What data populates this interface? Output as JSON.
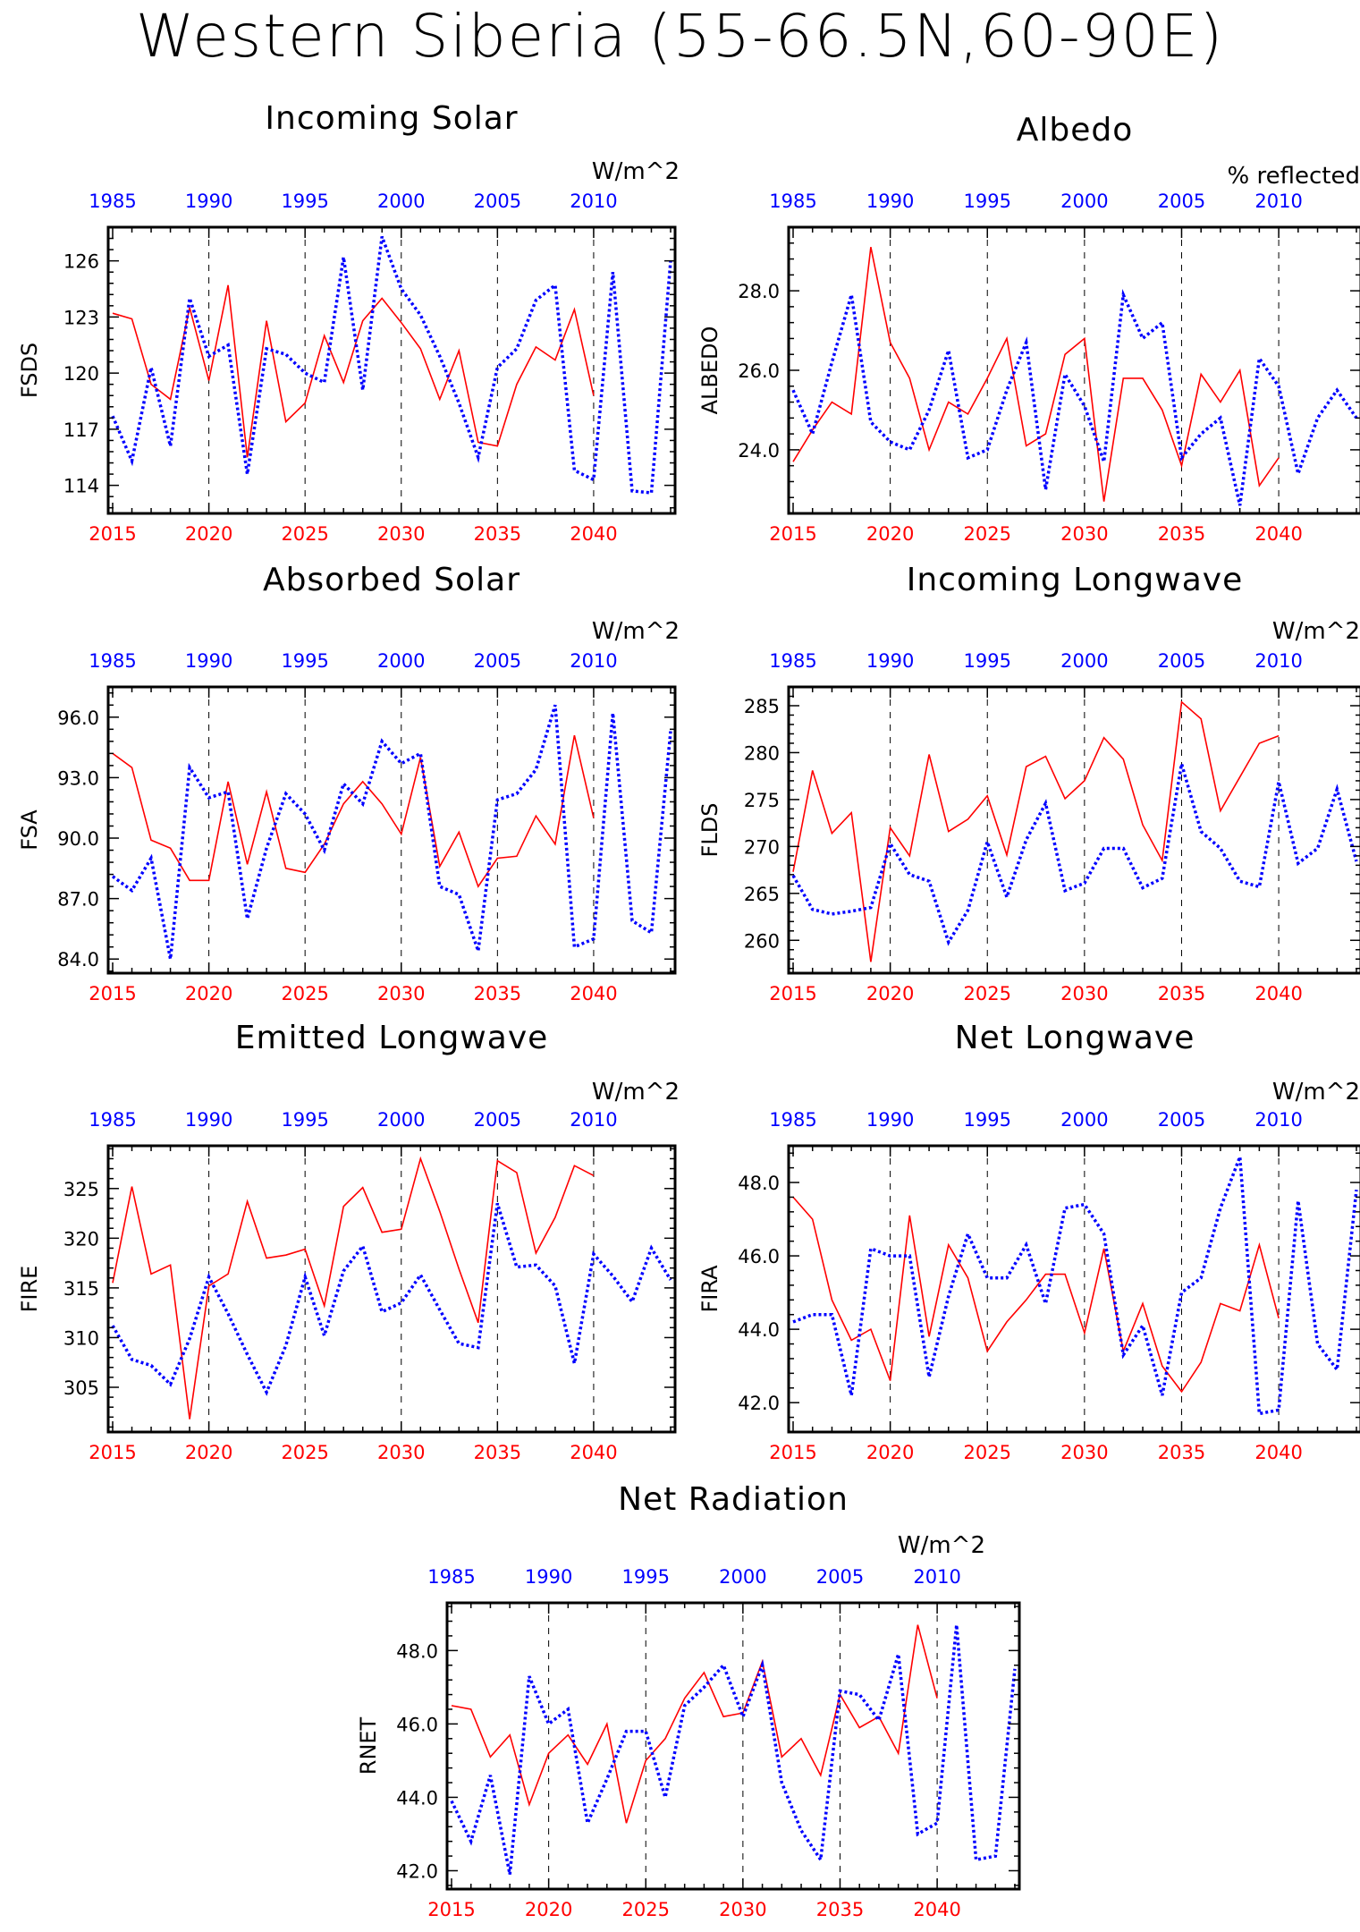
{
  "figure": {
    "title": "Western Siberia (55-66.5N,60-90E)"
  },
  "styles": {
    "future_color": "#ff0000",
    "historical_color": "#0000ff",
    "future_line": "solid",
    "historical_line": "dotted"
  },
  "chart_data": [
    {
      "id": "fsds",
      "type": "line",
      "title": "Incoming Solar",
      "units": "W/m^2",
      "ylabel": "FSDS",
      "ylim": [
        112.5,
        127.8
      ],
      "yticks": [
        114,
        117,
        120,
        123,
        126
      ],
      "ytick_labels": [
        "114",
        "117",
        "120",
        "123",
        "126"
      ],
      "x_bottom": {
        "lim": [
          2015,
          2044
        ],
        "ticks": [
          2015,
          2020,
          2025,
          2030,
          2035,
          2040
        ]
      },
      "x_top": {
        "lim": [
          1985,
          2014
        ],
        "ticks": [
          1985,
          1990,
          1995,
          2000,
          2005,
          2010
        ]
      },
      "series": [
        {
          "axis": "bottom",
          "x0": 2015,
          "values": [
            123.2,
            122.9,
            119.4,
            118.6,
            123.5,
            119.6,
            124.7,
            115.5,
            122.8,
            117.4,
            118.4,
            122.0,
            119.5,
            122.8,
            124.0,
            122.7,
            121.3,
            118.6,
            121.2,
            116.3,
            116.1,
            119.4,
            121.4,
            120.7,
            123.4,
            118.8
          ]
        },
        {
          "axis": "top",
          "x0": 1985,
          "values": [
            117.7,
            115.3,
            120.3,
            116.1,
            124.0,
            120.9,
            121.5,
            114.6,
            121.3,
            121.0,
            120.0,
            119.5,
            126.2,
            119.1,
            127.3,
            124.5,
            123.1,
            120.9,
            118.4,
            115.5,
            120.3,
            121.3,
            123.9,
            124.7,
            114.8,
            114.3,
            125.4,
            113.7,
            113.6,
            126.0
          ]
        }
      ]
    },
    {
      "id": "albedo",
      "type": "line",
      "title": "Albedo",
      "units": "% reflected",
      "ylabel": "ALBEDO",
      "ylim": [
        22.4,
        29.6
      ],
      "yticks": [
        24,
        26,
        28
      ],
      "ytick_labels": [
        "24.0",
        "26.0",
        "28.0"
      ],
      "x_bottom": {
        "lim": [
          2015,
          2044
        ],
        "ticks": [
          2015,
          2020,
          2025,
          2030,
          2035,
          2040
        ]
      },
      "x_top": {
        "lim": [
          1985,
          2014
        ],
        "ticks": [
          1985,
          1990,
          1995,
          2000,
          2005,
          2010
        ]
      },
      "series": [
        {
          "axis": "bottom",
          "x0": 2015,
          "values": [
            23.7,
            24.5,
            25.2,
            24.9,
            29.1,
            26.7,
            25.8,
            24.0,
            25.2,
            24.9,
            25.8,
            26.8,
            24.1,
            24.4,
            26.4,
            26.8,
            22.7,
            25.8,
            25.8,
            25.0,
            23.6,
            25.9,
            25.2,
            26.0,
            23.1,
            23.8
          ]
        },
        {
          "axis": "top",
          "x0": 1985,
          "values": [
            25.5,
            24.4,
            26.2,
            27.9,
            24.7,
            24.2,
            24.0,
            25.0,
            26.5,
            23.8,
            24.0,
            25.5,
            26.7,
            23.0,
            25.9,
            25.1,
            23.7,
            27.9,
            26.8,
            27.2,
            23.8,
            24.4,
            24.8,
            22.6,
            26.3,
            25.6,
            23.4,
            24.8,
            25.5,
            24.8
          ]
        }
      ]
    },
    {
      "id": "fsa",
      "type": "line",
      "title": "Absorbed Solar",
      "units": "W/m^2",
      "ylabel": "FSA",
      "ylim": [
        83.3,
        97.5
      ],
      "yticks": [
        84,
        87,
        90,
        93,
        96
      ],
      "ytick_labels": [
        "84.0",
        "87.0",
        "90.0",
        "93.0",
        "96.0"
      ],
      "x_bottom": {
        "lim": [
          2015,
          2044
        ],
        "ticks": [
          2015,
          2020,
          2025,
          2030,
          2035,
          2040
        ]
      },
      "x_top": {
        "lim": [
          1985,
          2014
        ],
        "ticks": [
          1985,
          1990,
          1995,
          2000,
          2005,
          2010
        ]
      },
      "series": [
        {
          "axis": "bottom",
          "x0": 2015,
          "values": [
            94.2,
            93.5,
            89.9,
            89.5,
            87.9,
            87.9,
            92.8,
            88.7,
            92.3,
            88.5,
            88.3,
            89.7,
            91.7,
            92.8,
            91.7,
            90.2,
            94.0,
            88.6,
            90.3,
            87.6,
            89.0,
            89.1,
            91.1,
            89.7,
            95.1,
            91.0
          ]
        },
        {
          "axis": "top",
          "x0": 1985,
          "values": [
            88.1,
            87.4,
            89.0,
            84.0,
            93.5,
            92.0,
            92.3,
            86.0,
            89.5,
            92.2,
            91.2,
            89.4,
            92.7,
            91.7,
            94.8,
            93.7,
            94.2,
            87.6,
            87.2,
            84.4,
            91.9,
            92.2,
            93.4,
            96.6,
            84.6,
            85.0,
            96.2,
            85.9,
            85.3,
            95.3
          ]
        }
      ]
    },
    {
      "id": "flds",
      "type": "line",
      "title": "Incoming Longwave",
      "units": "W/m^2",
      "ylabel": "FLDS",
      "ylim": [
        256.5,
        287.0
      ],
      "yticks": [
        260,
        265,
        270,
        275,
        280,
        285
      ],
      "ytick_labels": [
        "260",
        "265",
        "270",
        "275",
        "280",
        "285"
      ],
      "x_bottom": {
        "lim": [
          2015,
          2044
        ],
        "ticks": [
          2015,
          2020,
          2025,
          2030,
          2035,
          2040
        ]
      },
      "x_top": {
        "lim": [
          1985,
          2014
        ],
        "ticks": [
          1985,
          1990,
          1995,
          2000,
          2005,
          2010
        ]
      },
      "series": [
        {
          "axis": "bottom",
          "x0": 2015,
          "values": [
            267.3,
            278.1,
            271.4,
            273.6,
            257.7,
            272.0,
            269.0,
            279.8,
            271.6,
            272.9,
            275.4,
            269.1,
            278.5,
            279.6,
            275.1,
            277.0,
            281.6,
            279.3,
            272.3,
            268.5,
            285.4,
            283.6,
            273.8,
            277.4,
            281.0,
            281.8
          ]
        },
        {
          "axis": "top",
          "x0": 1985,
          "values": [
            266.9,
            263.3,
            262.8,
            263.1,
            263.5,
            270.3,
            267.0,
            266.3,
            259.8,
            263.2,
            270.5,
            264.6,
            270.7,
            274.6,
            265.3,
            266.1,
            269.8,
            269.8,
            265.6,
            266.6,
            278.8,
            271.6,
            269.8,
            266.3,
            265.7,
            276.9,
            268.2,
            269.8,
            276.1,
            268.4
          ]
        }
      ]
    },
    {
      "id": "fire",
      "type": "line",
      "title": "Emitted Longwave",
      "units": "W/m^2",
      "ylabel": "FIRE",
      "ylim": [
        300.5,
        329.3
      ],
      "yticks": [
        305,
        310,
        315,
        320,
        325
      ],
      "ytick_labels": [
        "305",
        "310",
        "315",
        "320",
        "325"
      ],
      "x_bottom": {
        "lim": [
          2015,
          2044
        ],
        "ticks": [
          2015,
          2020,
          2025,
          2030,
          2035,
          2040
        ]
      },
      "x_top": {
        "lim": [
          1985,
          2014
        ],
        "ticks": [
          1985,
          1990,
          1995,
          2000,
          2005,
          2010
        ]
      },
      "series": [
        {
          "axis": "bottom",
          "x0": 2015,
          "values": [
            315.5,
            325.2,
            316.4,
            317.3,
            301.8,
            315.2,
            316.4,
            323.7,
            318.0,
            318.3,
            318.9,
            313.2,
            323.2,
            325.1,
            320.6,
            320.9,
            328.0,
            322.7,
            316.9,
            311.5,
            327.8,
            326.6,
            318.5,
            322.1,
            327.3,
            326.3
          ]
        },
        {
          "axis": "top",
          "x0": 1985,
          "values": [
            311.2,
            307.8,
            307.2,
            305.3,
            309.9,
            316.1,
            312.4,
            308.3,
            304.5,
            309.2,
            316.1,
            310.2,
            316.7,
            319.2,
            312.6,
            313.5,
            316.3,
            312.8,
            309.4,
            309.0,
            323.5,
            317.1,
            317.3,
            315.2,
            307.4,
            318.4,
            316.2,
            313.6,
            319.0,
            315.8
          ]
        }
      ]
    },
    {
      "id": "fira",
      "type": "line",
      "title": "Net Longwave",
      "units": "W/m^2",
      "ylabel": "FIRA",
      "ylim": [
        41.2,
        49.0
      ],
      "yticks": [
        42,
        44,
        46,
        48
      ],
      "ytick_labels": [
        "42.0",
        "44.0",
        "46.0",
        "48.0"
      ],
      "x_bottom": {
        "lim": [
          2015,
          2044
        ],
        "ticks": [
          2015,
          2020,
          2025,
          2030,
          2035,
          2040
        ]
      },
      "x_top": {
        "lim": [
          1985,
          2014
        ],
        "ticks": [
          1985,
          1990,
          1995,
          2000,
          2005,
          2010
        ]
      },
      "series": [
        {
          "axis": "bottom",
          "x0": 2015,
          "values": [
            47.6,
            47.0,
            44.8,
            43.7,
            44.0,
            42.6,
            47.1,
            43.8,
            46.3,
            45.4,
            43.4,
            44.2,
            44.8,
            45.5,
            45.5,
            43.9,
            46.2,
            43.4,
            44.7,
            43.0,
            42.3,
            43.1,
            44.7,
            44.5,
            46.3,
            44.3
          ]
        },
        {
          "axis": "top",
          "x0": 1985,
          "values": [
            44.2,
            44.4,
            44.4,
            42.2,
            46.2,
            46.0,
            46.0,
            42.7,
            44.9,
            46.6,
            45.4,
            45.4,
            46.3,
            44.7,
            47.3,
            47.4,
            46.6,
            43.3,
            44.1,
            42.2,
            45.0,
            45.4,
            47.3,
            48.7,
            41.7,
            41.8,
            47.5,
            43.6,
            42.9,
            47.8
          ]
        }
      ]
    },
    {
      "id": "rnet",
      "type": "line",
      "title": "Net Radiation",
      "units": "W/m^2",
      "ylabel": "RNET",
      "ylim": [
        41.5,
        49.3
      ],
      "yticks": [
        42,
        44,
        46,
        48
      ],
      "ytick_labels": [
        "42.0",
        "44.0",
        "46.0",
        "48.0"
      ],
      "x_bottom": {
        "lim": [
          2015,
          2044
        ],
        "ticks": [
          2015,
          2020,
          2025,
          2030,
          2035,
          2040
        ]
      },
      "x_top": {
        "lim": [
          1985,
          2014
        ],
        "ticks": [
          1985,
          1990,
          1995,
          2000,
          2005,
          2010
        ]
      },
      "series": [
        {
          "axis": "bottom",
          "x0": 2015,
          "values": [
            46.5,
            46.4,
            45.1,
            45.7,
            43.8,
            45.2,
            45.7,
            44.9,
            46.0,
            43.3,
            45.0,
            45.6,
            46.7,
            47.4,
            46.2,
            46.3,
            47.7,
            45.1,
            45.6,
            44.6,
            46.8,
            45.9,
            46.2,
            45.2,
            48.7,
            46.7
          ]
        },
        {
          "axis": "top",
          "x0": 1985,
          "values": [
            43.9,
            42.8,
            44.6,
            41.9,
            47.3,
            46.0,
            46.4,
            43.3,
            44.5,
            45.8,
            45.8,
            44.0,
            46.5,
            47.0,
            47.6,
            46.2,
            47.6,
            44.4,
            43.1,
            42.3,
            46.9,
            46.8,
            46.1,
            47.9,
            43.0,
            43.3,
            48.7,
            42.3,
            42.4,
            47.5
          ]
        }
      ]
    }
  ]
}
